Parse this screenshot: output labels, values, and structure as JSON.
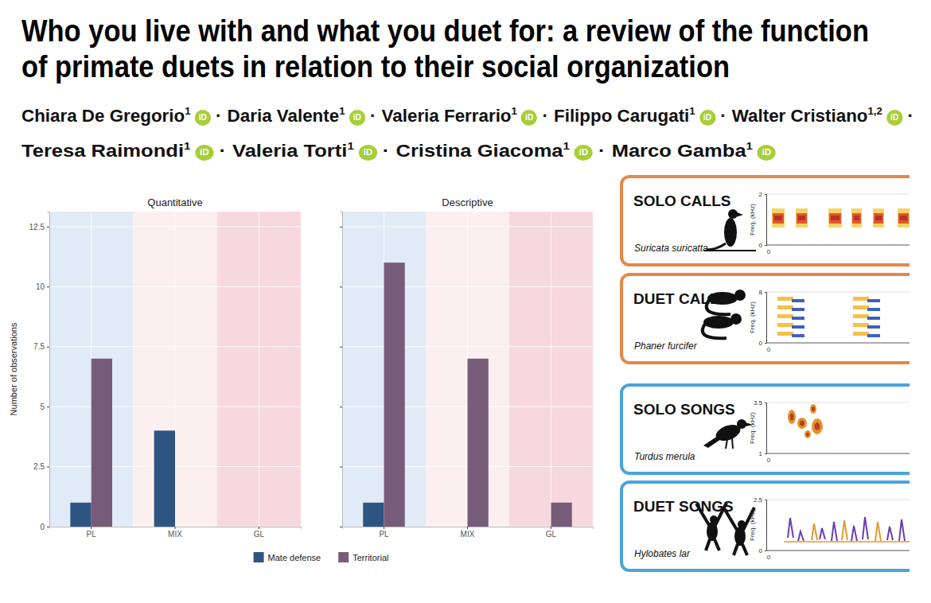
{
  "paper": {
    "title_lines": [
      "Who you live with and what you duet for: a review of the function",
      "of primate duets in relation to their social organization"
    ],
    "authors": [
      {
        "name": "Chiara De Gregorio",
        "affiliation": "1"
      },
      {
        "name": "Daria Valente",
        "affiliation": "1"
      },
      {
        "name": "Valeria Ferrario",
        "affiliation": "1"
      },
      {
        "name": "Filippo Carugati",
        "affiliation": "1"
      },
      {
        "name": "Walter Cristiano",
        "affiliation": "1,2"
      },
      {
        "name": "Teresa Raimondi",
        "affiliation": "1"
      },
      {
        "name": "Valeria Torti",
        "affiliation": "1"
      },
      {
        "name": "Cristina Giacoma",
        "affiliation": "1"
      },
      {
        "name": "Marco Gamba",
        "affiliation": "1"
      }
    ],
    "separator": "·",
    "orcid_label": "iD"
  },
  "chart_data": [
    {
      "type": "bar",
      "title": "Quantitative",
      "categories": [
        "PL",
        "MIX",
        "GL"
      ],
      "series": [
        {
          "name": "Mate defense",
          "color": "#2e5582",
          "values": [
            1,
            4,
            0
          ]
        },
        {
          "name": "Territorial",
          "color": "#775c79",
          "values": [
            7,
            0,
            0
          ]
        }
      ],
      "ylim": [
        0,
        13.125
      ],
      "yticks": [
        0,
        2.5,
        5,
        7.5,
        10,
        12.5
      ],
      "y_label": "Number of observations",
      "grid": true,
      "legend": "bottom"
    },
    {
      "type": "bar",
      "title": "Descriptive",
      "categories": [
        "PL",
        "MIX",
        "GL"
      ],
      "series": [
        {
          "name": "Mate defense",
          "color": "#2e5582",
          "values": [
            1,
            0,
            0
          ]
        },
        {
          "name": "Territorial",
          "color": "#775c79",
          "values": [
            11,
            7,
            1
          ]
        }
      ],
      "ylim": [
        0,
        13.125
      ],
      "yticks": [
        0,
        2.5,
        5,
        7.5,
        10,
        12.5
      ],
      "grid": true,
      "tick_labels": "x"
    }
  ],
  "panels": [
    {
      "heading": "SOLO CALLS",
      "species": "Suricata suricatta",
      "color": "#e3884a",
      "axis_label": "Freq. (kHz)",
      "yticks": [
        0,
        2
      ],
      "time_start": 0
    },
    {
      "heading": "DUET CALLS",
      "species": "Phaner furcifer",
      "color": "#e3884a",
      "axis_label": "Freq. (kHz)",
      "yticks": [
        0,
        8
      ],
      "time_start": 0
    },
    {
      "heading": "SOLO SONGS",
      "species": "Turdus merula",
      "color": "#4aa3df",
      "axis_label": "Freq. (kHz)",
      "yticks": [
        1,
        3.5
      ],
      "time_start": 0
    },
    {
      "heading": "DUET SONGS",
      "species": "Hylobates lar",
      "color": "#4aa3df",
      "axis_label": "Freq. (kHz)",
      "yticks": [
        0,
        2.5
      ],
      "time_start": 0
    }
  ]
}
